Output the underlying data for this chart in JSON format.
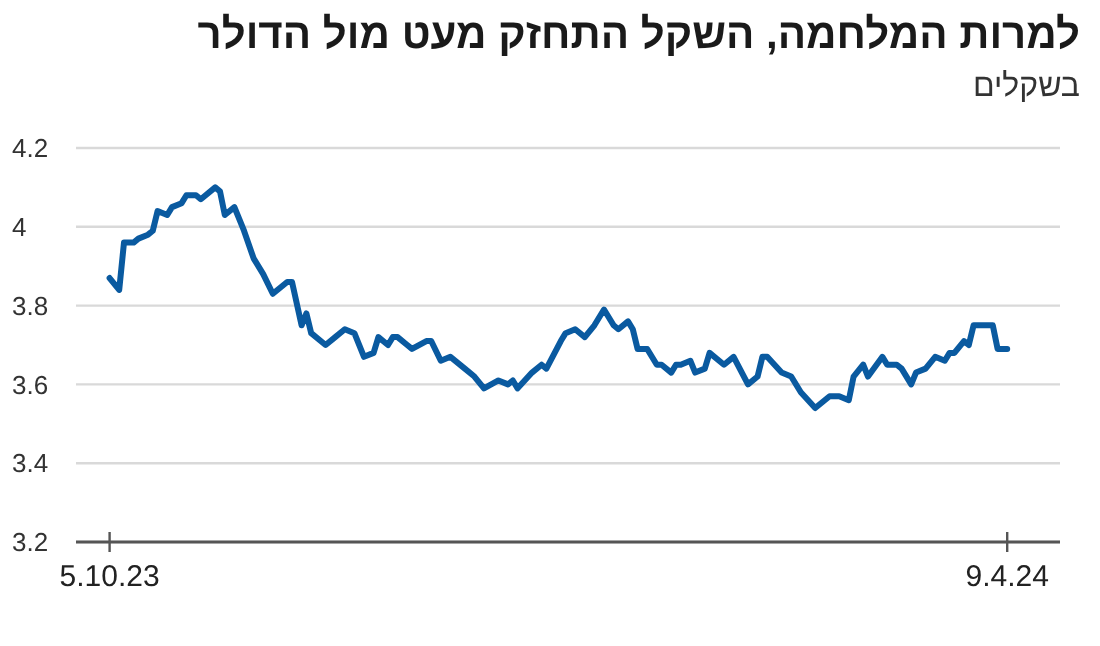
{
  "chart_data": {
    "type": "line",
    "title": "למרות המלחמה, השקל התחזק מעט מול הדולר",
    "subtitle": "בשקלים",
    "x": [
      "2023-10-05",
      "2023-10-07",
      "2023-10-08",
      "2023-10-10",
      "2023-10-11",
      "2023-10-13",
      "2023-10-14",
      "2023-10-15",
      "2023-10-17",
      "2023-10-18",
      "2023-10-20",
      "2023-10-21",
      "2023-10-23",
      "2023-10-24",
      "2023-10-27",
      "2023-10-28",
      "2023-10-29",
      "2023-10-31",
      "2023-11-02",
      "2023-11-04",
      "2023-11-06",
      "2023-11-08",
      "2023-11-11",
      "2023-11-12",
      "2023-11-14",
      "2023-11-15",
      "2023-11-16",
      "2023-11-19",
      "2023-11-21",
      "2023-11-23",
      "2023-11-25",
      "2023-11-27",
      "2023-11-29",
      "2023-11-30",
      "2023-12-02",
      "2023-12-03",
      "2023-12-04",
      "2023-12-06",
      "2023-12-07",
      "2023-12-10",
      "2023-12-11",
      "2023-12-13",
      "2023-12-15",
      "2023-12-18",
      "2023-12-20",
      "2023-12-22",
      "2023-12-25",
      "2023-12-27",
      "2023-12-28",
      "2023-12-29",
      "2024-01-01",
      "2024-01-03",
      "2024-01-04",
      "2024-01-07",
      "2024-01-08",
      "2024-01-10",
      "2024-01-12",
      "2024-01-14",
      "2024-01-16",
      "2024-01-18",
      "2024-01-19",
      "2024-01-21",
      "2024-01-22",
      "2024-01-23",
      "2024-01-25",
      "2024-01-27",
      "2024-01-28",
      "2024-01-30",
      "2024-01-31",
      "2024-02-01",
      "2024-02-03",
      "2024-02-04",
      "2024-02-06",
      "2024-02-07",
      "2024-02-10",
      "2024-02-12",
      "2024-02-15",
      "2024-02-17",
      "2024-02-18",
      "2024-02-19",
      "2024-02-22",
      "2024-02-24",
      "2024-02-26",
      "2024-02-29",
      "2024-03-03",
      "2024-03-05",
      "2024-03-07",
      "2024-03-08",
      "2024-03-10",
      "2024-03-11",
      "2024-03-14",
      "2024-03-15",
      "2024-03-17",
      "2024-03-18",
      "2024-03-20",
      "2024-03-21",
      "2024-03-23",
      "2024-03-25",
      "2024-03-27",
      "2024-03-28",
      "2024-03-29",
      "2024-03-31",
      "2024-04-01",
      "2024-04-02",
      "2024-04-05",
      "2024-04-06",
      "2024-04-07",
      "2024-04-09"
    ],
    "series": [
      {
        "color": "#0a5aa0",
        "values": [
          3.87,
          3.84,
          3.96,
          3.96,
          3.97,
          3.98,
          3.99,
          4.04,
          4.03,
          4.05,
          4.06,
          4.08,
          4.08,
          4.07,
          4.1,
          4.09,
          4.03,
          4.05,
          3.99,
          3.92,
          3.88,
          3.83,
          3.86,
          3.86,
          3.75,
          3.78,
          3.73,
          3.7,
          3.72,
          3.74,
          3.73,
          3.67,
          3.68,
          3.72,
          3.7,
          3.72,
          3.72,
          3.7,
          3.69,
          3.71,
          3.71,
          3.66,
          3.67,
          3.64,
          3.62,
          3.59,
          3.61,
          3.6,
          3.61,
          3.59,
          3.63,
          3.65,
          3.64,
          3.71,
          3.73,
          3.74,
          3.72,
          3.75,
          3.79,
          3.75,
          3.74,
          3.76,
          3.74,
          3.69,
          3.69,
          3.65,
          3.65,
          3.63,
          3.65,
          3.65,
          3.66,
          3.63,
          3.64,
          3.68,
          3.65,
          3.67,
          3.6,
          3.62,
          3.67,
          3.67,
          3.63,
          3.62,
          3.58,
          3.54,
          3.57,
          3.57,
          3.56,
          3.62,
          3.65,
          3.62,
          3.67,
          3.65,
          3.65,
          3.64,
          3.6,
          3.63,
          3.64,
          3.67,
          3.66,
          3.68,
          3.68,
          3.71,
          3.7,
          3.75,
          3.75,
          3.75,
          3.69,
          3.69
        ]
      }
    ],
    "xlim": [
      "2023-09-28",
      "2024-04-20"
    ],
    "xticks": [
      {
        "value": "2023-10-05",
        "label": "5.10.23"
      },
      {
        "value": "2024-04-09",
        "label": "9.4.24"
      }
    ],
    "ylim": [
      3.2,
      4.2
    ],
    "yticks": [
      3.2,
      3.4,
      3.6,
      3.8,
      4,
      4.2
    ],
    "grid": "y",
    "marker": "none",
    "line_style": "solid"
  }
}
